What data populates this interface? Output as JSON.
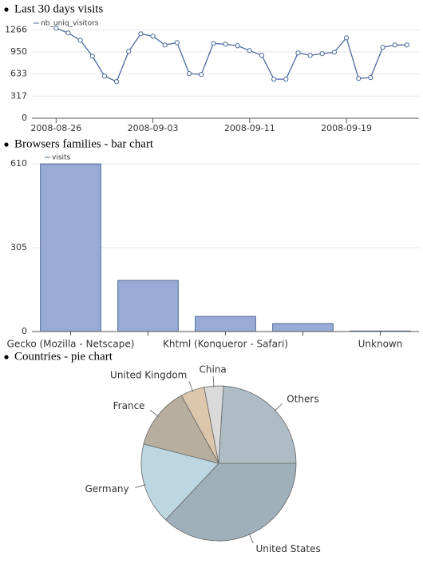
{
  "chart_data": [
    {
      "type": "line",
      "title": "Last 30 days visits",
      "x": [
        "2008-08-26",
        "2008-08-27",
        "2008-08-28",
        "2008-08-29",
        "2008-08-30",
        "2008-08-31",
        "2008-09-01",
        "2008-09-02",
        "2008-09-03",
        "2008-09-04",
        "2008-09-05",
        "2008-09-06",
        "2008-09-07",
        "2008-09-08",
        "2008-09-09",
        "2008-09-10",
        "2008-09-11",
        "2008-09-12",
        "2008-09-13",
        "2008-09-14",
        "2008-09-15",
        "2008-09-16",
        "2008-09-17",
        "2008-09-18",
        "2008-09-19",
        "2008-09-20",
        "2008-09-21",
        "2008-09-22",
        "2008-09-23",
        "2008-09-24"
      ],
      "series": [
        {
          "name": "nb_uniq_visitors",
          "color": "#4a6a9c",
          "values": [
            1289,
            1220,
            1117,
            889,
            604,
            525,
            958,
            1209,
            1174,
            1049,
            1083,
            639,
            627,
            1072,
            1060,
            1038,
            969,
            901,
            559,
            559,
            935,
            901,
            924,
            946,
            1152,
            570,
            582,
            1015,
            1049,
            1049
          ]
        }
      ],
      "xlim": [
        "2008-08-24",
        "2008-09-25"
      ],
      "xticks": [
        "2008-08-26",
        "2008-09-03",
        "2008-09-11",
        "2008-09-19"
      ],
      "ylim": [
        0,
        1350
      ],
      "yticks": [
        0,
        317,
        633,
        950,
        1266
      ],
      "grid": true
    },
    {
      "type": "bar",
      "title": "Browsers families - bar chart",
      "categories": [
        "Gecko (Mozilla - Netscape)",
        null,
        "Khtml (Konqueror - Safari)",
        null,
        "Unknown"
      ],
      "series": [
        {
          "name": "visits",
          "color": "#9aaad6",
          "values": [
            610,
            186,
            55,
            29,
            2
          ]
        }
      ],
      "ylim": [
        0,
        625
      ],
      "yticks": [
        0,
        305,
        610
      ],
      "grid": true
    },
    {
      "type": "pie",
      "title": "Countries - pie chart",
      "categories": [
        "United States",
        "Germany",
        "France",
        "United Kingdom",
        "China",
        "Others"
      ],
      "values": [
        37,
        17,
        13,
        5,
        4,
        24
      ],
      "colors": [
        "#9fb0bb",
        "#bcd6e2",
        "#b8ae9e",
        "#dcc6ac",
        "#dadada",
        "#aebdc5"
      ]
    }
  ]
}
